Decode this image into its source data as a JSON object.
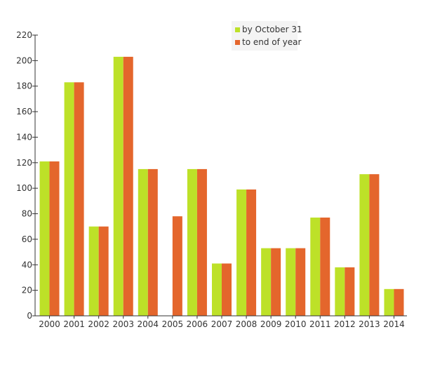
{
  "chart_data": {
    "type": "bar",
    "title": "",
    "xlabel": "",
    "ylabel": "",
    "categories": [
      "2000",
      "2001",
      "2002",
      "2003",
      "2004",
      "2005",
      "2006",
      "2007",
      "2008",
      "2009",
      "2010",
      "2011",
      "2012",
      "2013",
      "2014"
    ],
    "series": [
      {
        "name": "by October 31",
        "color": "#bde128",
        "values": [
          121,
          183,
          70,
          203,
          115,
          0,
          115,
          41,
          99,
          53,
          53,
          77,
          38,
          111,
          21
        ]
      },
      {
        "name": "to end of year",
        "color": "#e4662c",
        "values": [
          121,
          183,
          70,
          203,
          115,
          78,
          115,
          41,
          99,
          53,
          53,
          77,
          38,
          111,
          21
        ]
      }
    ],
    "ylim": [
      0,
      220
    ],
    "yticks": [
      0,
      20,
      40,
      60,
      80,
      100,
      120,
      140,
      160,
      180,
      200,
      220
    ],
    "grid": false,
    "legend_position": "top-right"
  }
}
